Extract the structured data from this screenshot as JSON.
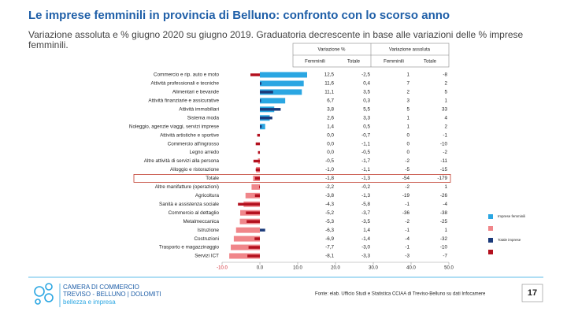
{
  "chart_data": {
    "type": "bar",
    "title": "Le imprese femminili in provincia di Belluno: confronto con lo scorso anno",
    "subtitle": "Variazione assoluta e % giugno 2020 su giugno 2019. Graduatoria decrescente in base alle variazioni delle % imprese femminili.",
    "categories": [
      "Commercio e rip. auto e moto",
      "Attività professionali e tecniche",
      "Alimentari e bevande",
      "Attività finanziarie e assicurative",
      "Attività immobiliari",
      "Sistema moda",
      "Noleggio, agenzie viaggi, servizi imprese",
      "Attività artistiche e sportive",
      "Commercio all'ingrosso",
      "Legno arredo",
      "Altre attività di servizi alla persona",
      "Alloggio e ristorazione",
      "Totale",
      "Altre manifatture (operazioni)",
      "Agricoltura",
      "Sanità e assistenza sociale",
      "Commercio al dettaglio",
      "Metalmeccanica",
      "Istruzione",
      "Costruzioni",
      "Trasporto e magazzinaggio",
      "Servizi ICT"
    ],
    "series": [
      {
        "name": "Imprese femminili",
        "color": "#2aa6e2",
        "negative_color": "#f0868a",
        "values": [
          12.5,
          11.6,
          11.1,
          6.7,
          3.8,
          2.6,
          1.4,
          0.0,
          0.0,
          0.0,
          -0.5,
          -1.0,
          -1.8,
          -2.2,
          -3.8,
          -4.3,
          -5.2,
          -5.3,
          -6.3,
          -6.9,
          -7.7,
          -8.1
        ],
        "value_labels": [
          "12,5",
          "11,6",
          "11,1",
          "6,7",
          "3,8",
          "2,6",
          "1,4",
          "0,0",
          "0,0",
          "0,0",
          "-0,5",
          "-1,0",
          "-1,8",
          "-2,2",
          "-3,8",
          "-4,3",
          "-5,2",
          "-5,3",
          "-6,3",
          "-6,9",
          "-7,7",
          "-8,1"
        ]
      },
      {
        "name": "Totale imprese",
        "color": "#1b3a7a",
        "negative_color": "#b3101e",
        "values": [
          -2.5,
          0.4,
          3.5,
          0.3,
          5.5,
          3.3,
          0.5,
          -0.7,
          -1.1,
          -0.5,
          -1.7,
          -1.1,
          -1.3,
          -0.2,
          -1.3,
          -5.8,
          -3.7,
          -3.5,
          1.4,
          -1.4,
          -3.0,
          -3.3
        ],
        "value_labels": [
          "-2,5",
          "0,4",
          "3,5",
          "0,3",
          "5,5",
          "3,3",
          "0,5",
          "-0,7",
          "-1,1",
          "-0,5",
          "-1,7",
          "-1,1",
          "-1,3",
          "-0,2",
          "-1,3",
          "-5,8",
          "-3,7",
          "-3,5",
          "1,4",
          "-1,4",
          "-3,0",
          "-3,3"
        ]
      }
    ],
    "abs_series": [
      {
        "name": "Femminili",
        "values": [
          1,
          7,
          2,
          3,
          5,
          1,
          1,
          0,
          0,
          0,
          -2,
          -5,
          -54,
          -2,
          -19,
          -1,
          -36,
          -2,
          -1,
          -4,
          -1,
          -3
        ]
      },
      {
        "name": "Totale",
        "values": [
          -8,
          2,
          5,
          1,
          33,
          4,
          2,
          -1,
          -10,
          -2,
          -11,
          -15,
          -179,
          1,
          -26,
          -4,
          -38,
          -25,
          1,
          -32,
          -10,
          -7
        ]
      }
    ],
    "pct_header": "Variazione %",
    "abs_header": "Variazione assoluta",
    "xlim": [
      -10,
      50
    ],
    "xticks": [
      {
        "value": -10,
        "label": "-10.0"
      },
      {
        "value": 0,
        "label": "0.0"
      },
      {
        "value": 10,
        "label": "10.0"
      },
      {
        "value": 20,
        "label": "20.0"
      },
      {
        "value": 30,
        "label": "30.0"
      },
      {
        "value": 40,
        "label": "40.0"
      },
      {
        "value": 50,
        "label": "50.0"
      }
    ],
    "legend": "right",
    "source": "Fonte: elab. Ufficio Studi e Statistica CCIAA di Treviso-Belluno su dati Infocamere",
    "logo": [
      "CAMERA DI COMMERCIO",
      "TREVISO - BELLUNO | DOLOMITI",
      "bellezza e impresa"
    ],
    "page_number": "17"
  }
}
